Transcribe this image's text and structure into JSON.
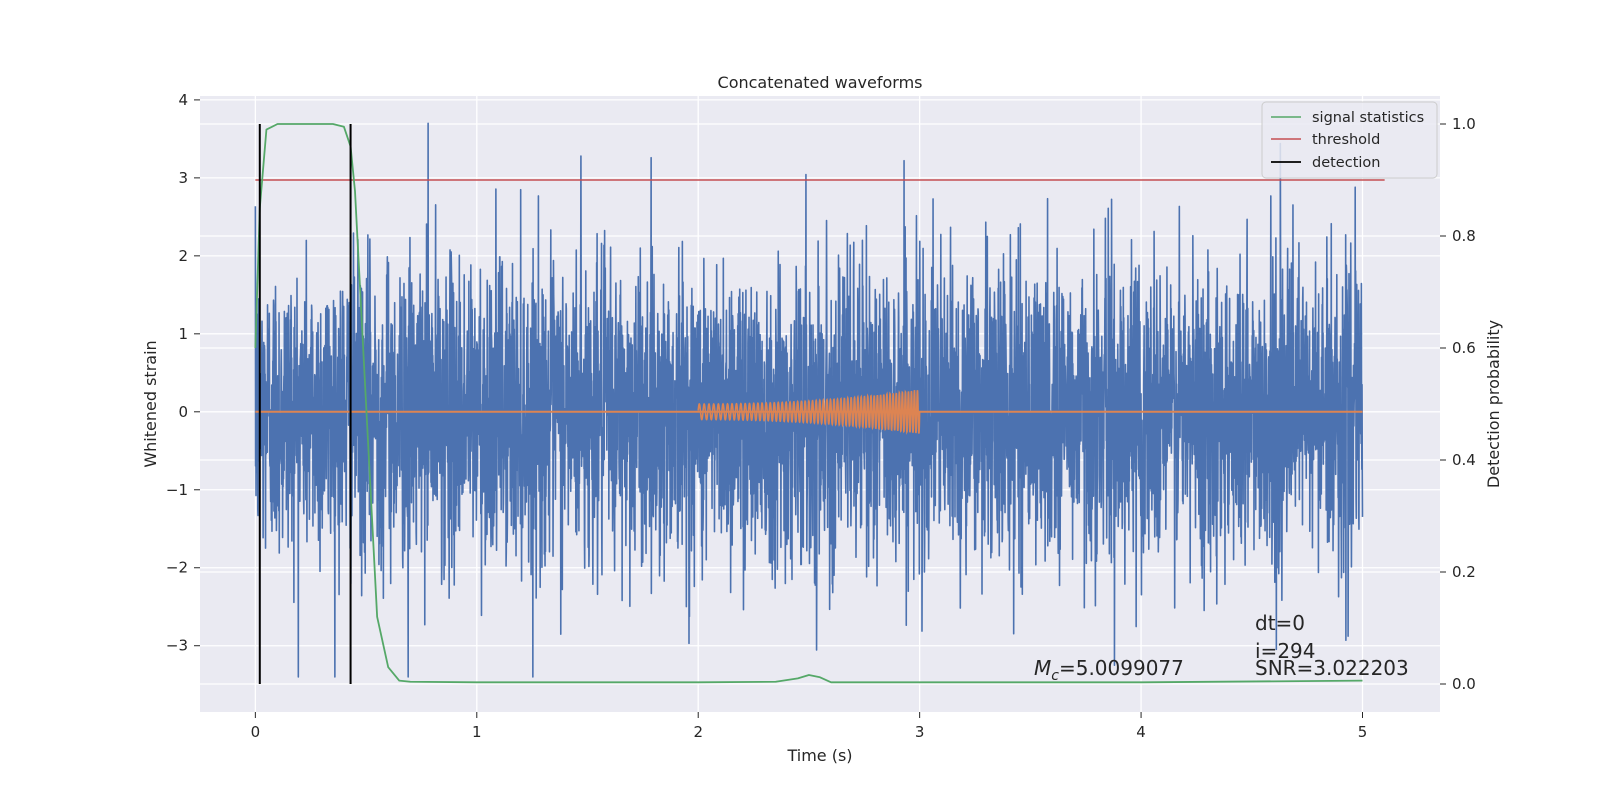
{
  "chart_data": {
    "type": "line",
    "title": "Concatenated waveforms",
    "xlabel": "Time (s)",
    "ylabel": "Whitened strain",
    "y2label": "Detection probability",
    "xlim": [
      -0.25,
      5.35
    ],
    "ylim": [
      -3.85,
      4.05
    ],
    "y2lim": [
      -0.05,
      1.05
    ],
    "xticks": [
      0,
      1,
      2,
      3,
      4,
      5
    ],
    "yticks": [
      -3,
      -2,
      -1,
      0,
      1,
      2,
      3,
      4
    ],
    "y2ticks": [
      0.0,
      0.2,
      0.4,
      0.6,
      0.8,
      1.0
    ],
    "xtick_labels": [
      "0",
      "1",
      "2",
      "3",
      "4",
      "5"
    ],
    "ytick_labels": [
      "−3",
      "−2",
      "−1",
      "0",
      "1",
      "2",
      "3",
      "4"
    ],
    "y2tick_labels": [
      "0.0",
      "0.2",
      "0.4",
      "0.6",
      "0.8",
      "1.0"
    ],
    "grid": true,
    "legend_position": "top-right",
    "series": [
      {
        "name": "",
        "axis": "left",
        "kind": "noise",
        "x_range": [
          0,
          5
        ],
        "color": "#4c72b0",
        "approx_envelope": [
          -3.4,
          3.7
        ],
        "notable_peaks": [
          {
            "x": 0.78,
            "y": 3.7
          },
          {
            "x": 1.47,
            "y": 3.28
          },
          {
            "x": 2.93,
            "y": 3.22
          },
          {
            "x": 0.69,
            "y": -3.4
          },
          {
            "x": 3.88,
            "y": -3.25
          }
        ]
      },
      {
        "name": "",
        "axis": "left",
        "kind": "chirp",
        "x_range": [
          2,
          3
        ],
        "color": "#dd8452",
        "amplitude_start": 0.1,
        "amplitude_end": 0.28,
        "baseline": 0
      },
      {
        "name": "signal statistics",
        "axis": "right",
        "color": "#55a868",
        "x": [
          0,
          0.02,
          0.05,
          0.1,
          0.2,
          0.35,
          0.4,
          0.43,
          0.45,
          0.5,
          0.55,
          0.6,
          0.65,
          0.7,
          1.0,
          1.5,
          2.0,
          2.35,
          2.45,
          2.5,
          2.55,
          2.6,
          3.0,
          4.0,
          5.0
        ],
        "y": [
          0.6,
          0.85,
          0.99,
          1.0,
          1.0,
          1.0,
          0.995,
          0.96,
          0.88,
          0.5,
          0.12,
          0.03,
          0.006,
          0.004,
          0.003,
          0.003,
          0.003,
          0.004,
          0.01,
          0.016,
          0.012,
          0.003,
          0.003,
          0.003,
          0.006
        ]
      },
      {
        "name": "threshold",
        "axis": "right",
        "color": "#c44e52",
        "x": [
          0,
          5.1
        ],
        "y": [
          0.9,
          0.9
        ]
      },
      {
        "name": "detection",
        "axis": "right",
        "color": "#000000",
        "segments": [
          {
            "x": 0.02,
            "y": [
              0,
              1.0
            ]
          },
          {
            "x": 0.43,
            "y": [
              0,
              1.0
            ]
          }
        ]
      }
    ],
    "annotations": {
      "mc_symbol": "M",
      "mc_sub": "c",
      "mc_value": "=5.0099077",
      "dt": "dt=0",
      "i": "i=294",
      "snr": "SNR=3.022203"
    }
  }
}
